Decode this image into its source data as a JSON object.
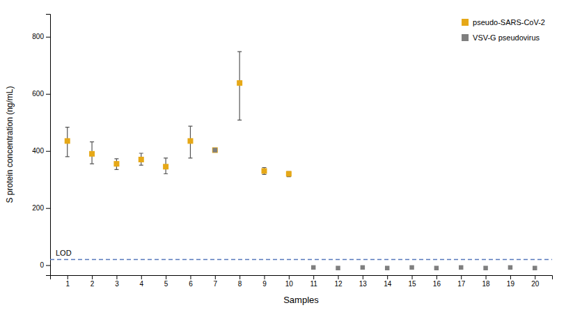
{
  "chart_data": {
    "type": "scatter",
    "x_label": "Samples",
    "y_label": "S protein concentration (ng/mL)",
    "series": [
      {
        "name": "pseudo-SARS-CoV-2",
        "color": "#E6A817",
        "marker": "square",
        "error_color": "#555555",
        "x": [
          1,
          2,
          3,
          4,
          5,
          6,
          7,
          8,
          9,
          10
        ],
        "values": [
          435,
          390,
          355,
          370,
          345,
          435,
          403,
          638,
          330,
          320
        ],
        "error_low": [
          55,
          35,
          20,
          20,
          25,
          60,
          5,
          130,
          12,
          10
        ],
        "error_high": [
          48,
          42,
          18,
          22,
          30,
          52,
          5,
          110,
          12,
          8
        ]
      },
      {
        "name": "VSV-G pseudovirus",
        "color": "#7f7f7f",
        "marker": "square",
        "x": [
          7,
          11,
          12,
          13,
          14,
          15,
          16,
          17,
          18,
          19,
          20
        ],
        "values": [
          403,
          -8,
          -10,
          -8,
          -10,
          -8,
          -10,
          -8,
          -10,
          -8,
          -10
        ]
      }
    ],
    "reference_lines": [
      {
        "value": 20,
        "label": "LOD",
        "color": "#5577BB",
        "line_style": "dashed"
      }
    ],
    "xlim": [
      0.3,
      20.7
    ],
    "xticks": [
      1,
      2,
      3,
      4,
      5,
      6,
      7,
      8,
      9,
      10,
      11,
      12,
      13,
      14,
      15,
      16,
      17,
      18,
      19,
      20
    ],
    "ylim": [
      -35,
      880
    ],
    "yticks": [
      0,
      200,
      400,
      600,
      800
    ],
    "grid": false,
    "legend": "upper right"
  }
}
